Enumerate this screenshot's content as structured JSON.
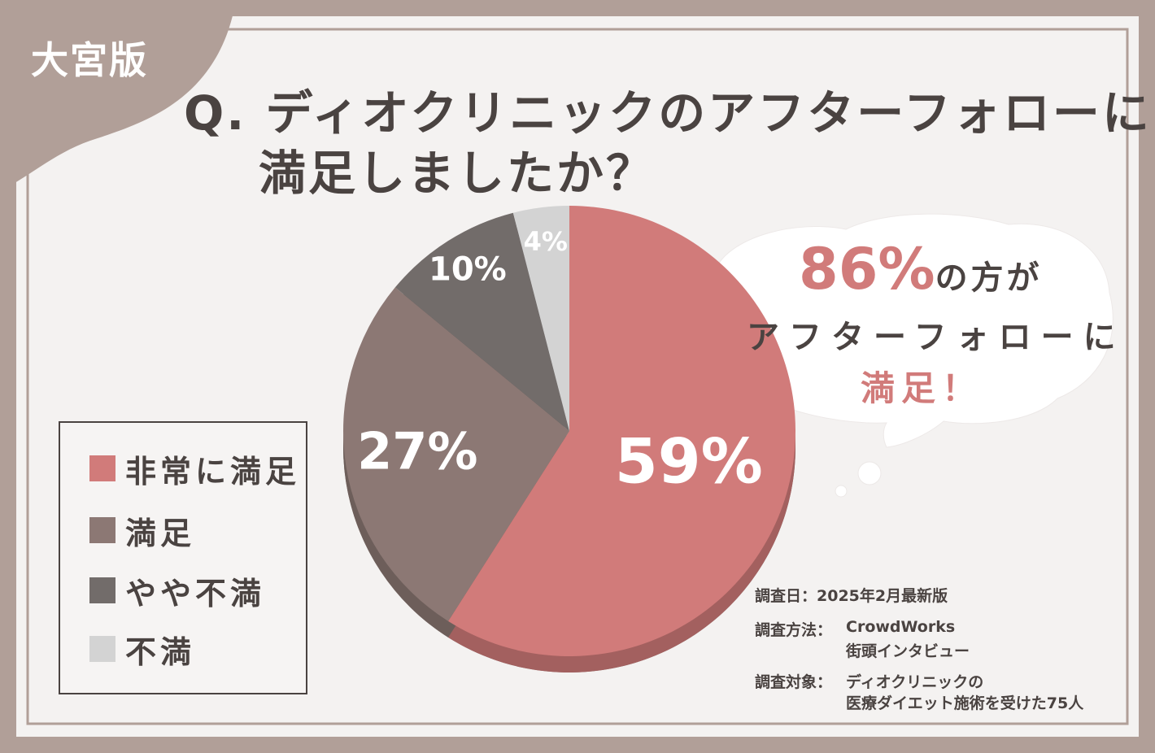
{
  "edition_tag": "大宮版",
  "question": {
    "line1": "Q. ディオクリニックのアフターフォローに",
    "line2": "満足しましたか？"
  },
  "callout": {
    "percent": "86%",
    "line1_suffix": "の方が",
    "line2": "アフターフォローに",
    "line3": "満足！"
  },
  "legend": [
    {
      "label": "非常に満足",
      "color": "#d17b7a"
    },
    {
      "label": "満足",
      "color": "#8c7874"
    },
    {
      "label": "やや不満",
      "color": "#726c6a"
    },
    {
      "label": "不満",
      "color": "#d3d3d3"
    }
  ],
  "survey_info": {
    "date_label": "調査日：",
    "date_value": "2025年2月最新版",
    "method_label": "調査方法：",
    "method_value_1": "CrowdWorks",
    "method_value_2": "街頭インタビュー",
    "target_label": "調査対象：",
    "target_value_1": "ディオクリニックの",
    "target_value_2": "医療ダイエット施術を受けた75人"
  },
  "chart_data": {
    "type": "pie",
    "title": "Q. ディオクリニックのアフターフォローに満足しましたか？",
    "slices": [
      {
        "name": "非常に満足",
        "value": 59,
        "label": "59%",
        "color": "#d17b7a"
      },
      {
        "name": "満足",
        "value": 27,
        "label": "27%",
        "color": "#8c7874"
      },
      {
        "name": "やや不満",
        "value": 10,
        "label": "10%",
        "color": "#726c6a"
      },
      {
        "name": "不満",
        "value": 4,
        "label": "4%",
        "color": "#d3d3d3"
      }
    ],
    "start_angle": "12 o'clock",
    "direction": "clockwise",
    "legend_position": "left"
  }
}
